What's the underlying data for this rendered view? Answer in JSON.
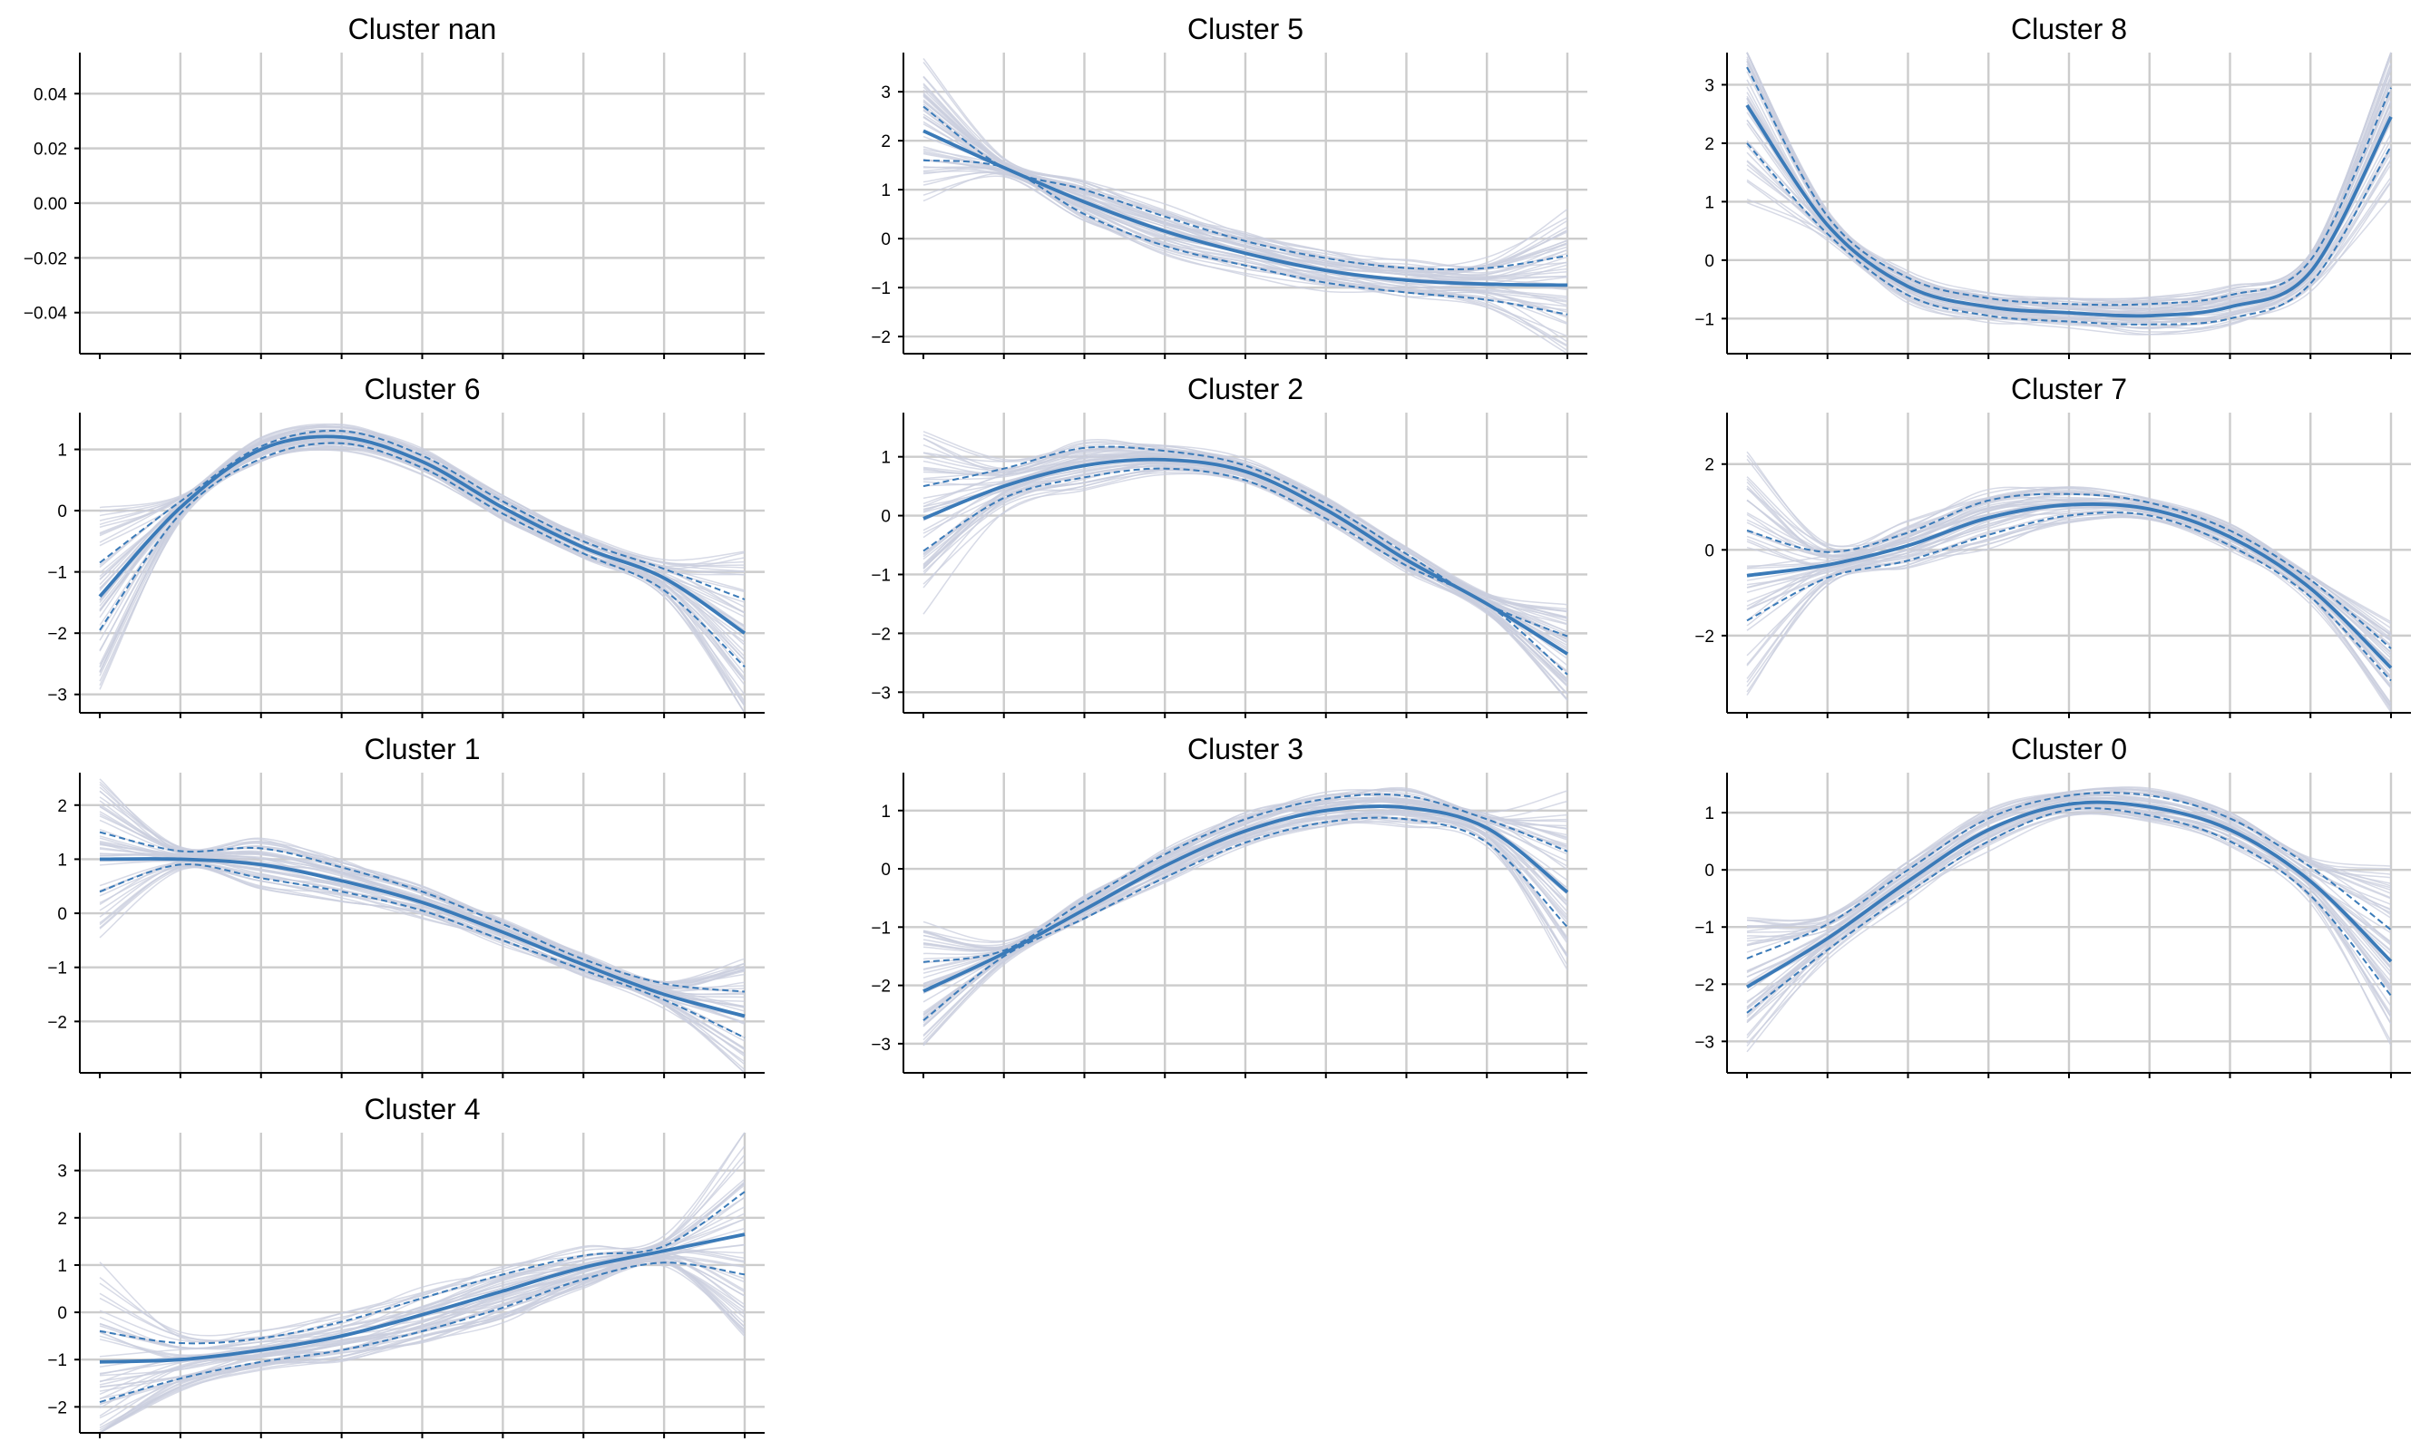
{
  "figure": {
    "accent_color": "#3a7ab8",
    "background_line_color": "#c9cdde",
    "grid_color": "#cccccc"
  },
  "chart_data": [
    {
      "type": "line",
      "title": "Cluster nan",
      "ylim": [
        -0.055,
        0.055
      ],
      "yticks": [
        0.04,
        0.02,
        0.0,
        -0.02,
        -0.04
      ],
      "ytick_labels": [
        "0.04",
        "0.02",
        "0.00",
        "−0.02",
        "−0.04"
      ],
      "x": [],
      "series": [],
      "xlabel": "",
      "ylabel": "",
      "grid": true
    },
    {
      "type": "line",
      "title": "Cluster 5",
      "ylim": [
        -2.35,
        3.8
      ],
      "yticks": [
        3,
        2,
        1,
        0,
        -1,
        -2
      ],
      "ytick_labels": [
        "3",
        "2",
        "1",
        "0",
        "−1",
        "−2"
      ],
      "x": [
        0,
        1,
        2,
        3,
        4,
        5,
        6,
        7,
        8
      ],
      "series": [
        {
          "name": "mean",
          "values": [
            2.2,
            1.45,
            0.75,
            0.15,
            -0.3,
            -0.65,
            -0.85,
            -0.93,
            -0.95
          ]
        },
        {
          "name": "upper",
          "values": [
            2.7,
            1.45,
            1.0,
            0.45,
            -0.05,
            -0.4,
            -0.6,
            -0.6,
            -0.35
          ]
        },
        {
          "name": "lower",
          "values": [
            1.6,
            1.45,
            0.5,
            -0.15,
            -0.55,
            -0.9,
            -1.1,
            -1.25,
            -1.55
          ]
        }
      ],
      "xlabel": "",
      "ylabel": "",
      "grid": true
    },
    {
      "type": "line",
      "title": "Cluster 8",
      "ylim": [
        -1.6,
        3.55
      ],
      "yticks": [
        3,
        2,
        1,
        0,
        -1
      ],
      "ytick_labels": [
        "3",
        "2",
        "1",
        "0",
        "−1"
      ],
      "x": [
        0,
        1,
        2,
        3,
        4,
        5,
        6,
        7,
        8
      ],
      "series": [
        {
          "name": "mean",
          "values": [
            2.65,
            0.6,
            -0.45,
            -0.8,
            -0.9,
            -0.95,
            -0.8,
            -0.2,
            2.45
          ]
        },
        {
          "name": "upper",
          "values": [
            3.3,
            0.75,
            -0.3,
            -0.65,
            -0.75,
            -0.75,
            -0.6,
            0.0,
            2.95
          ]
        },
        {
          "name": "lower",
          "values": [
            2.0,
            0.45,
            -0.6,
            -0.95,
            -1.05,
            -1.1,
            -1.0,
            -0.4,
            1.95
          ]
        }
      ],
      "xlabel": "",
      "ylabel": "",
      "grid": true
    },
    {
      "type": "line",
      "title": "Cluster 6",
      "ylim": [
        -3.3,
        1.6
      ],
      "yticks": [
        1,
        0,
        -1,
        -2,
        -3
      ],
      "ytick_labels": [
        "1",
        "0",
        "−1",
        "−2",
        "−3"
      ],
      "x": [
        0,
        1,
        2,
        3,
        4,
        5,
        6,
        7,
        8
      ],
      "series": [
        {
          "name": "mean",
          "values": [
            -1.4,
            0.05,
            1.0,
            1.2,
            0.8,
            0.05,
            -0.6,
            -1.1,
            -2.0
          ]
        },
        {
          "name": "upper",
          "values": [
            -0.85,
            0.15,
            1.05,
            1.3,
            0.9,
            0.15,
            -0.5,
            -0.95,
            -1.45
          ]
        },
        {
          "name": "lower",
          "values": [
            -1.95,
            -0.05,
            0.85,
            1.1,
            0.7,
            -0.05,
            -0.7,
            -1.3,
            -2.55
          ]
        }
      ],
      "xlabel": "",
      "ylabel": "",
      "grid": true
    },
    {
      "type": "line",
      "title": "Cluster 2",
      "ylim": [
        -3.35,
        1.75
      ],
      "yticks": [
        1,
        0,
        -1,
        -2,
        -3
      ],
      "ytick_labels": [
        "1",
        "0",
        "−1",
        "−2",
        "−3"
      ],
      "x": [
        0,
        1,
        2,
        3,
        4,
        5,
        6,
        7,
        8
      ],
      "series": [
        {
          "name": "mean",
          "values": [
            -0.05,
            0.5,
            0.85,
            0.95,
            0.75,
            0.1,
            -0.75,
            -1.5,
            -2.35
          ]
        },
        {
          "name": "upper",
          "values": [
            0.5,
            0.8,
            1.15,
            1.1,
            0.85,
            0.2,
            -0.65,
            -1.5,
            -2.05
          ]
        },
        {
          "name": "lower",
          "values": [
            -0.6,
            0.3,
            0.65,
            0.8,
            0.6,
            -0.05,
            -0.85,
            -1.5,
            -2.7
          ]
        }
      ],
      "xlabel": "",
      "ylabel": "",
      "grid": true
    },
    {
      "type": "line",
      "title": "Cluster 7",
      "ylim": [
        -3.8,
        3.2
      ],
      "yticks": [
        2,
        0,
        -2
      ],
      "ytick_labels": [
        "2",
        "0",
        "−2"
      ],
      "x": [
        0,
        1,
        2,
        3,
        4,
        5,
        6,
        7,
        8
      ],
      "series": [
        {
          "name": "mean",
          "values": [
            -0.6,
            -0.35,
            0.1,
            0.75,
            1.05,
            0.95,
            0.3,
            -0.9,
            -2.75
          ]
        },
        {
          "name": "upper",
          "values": [
            0.45,
            -0.05,
            0.4,
            1.15,
            1.3,
            1.1,
            0.45,
            -0.7,
            -2.3
          ]
        },
        {
          "name": "lower",
          "values": [
            -1.65,
            -0.65,
            -0.25,
            0.35,
            0.8,
            0.8,
            0.1,
            -1.1,
            -3.05
          ]
        }
      ],
      "xlabel": "",
      "ylabel": "",
      "grid": true
    },
    {
      "type": "line",
      "title": "Cluster 1",
      "ylim": [
        -2.95,
        2.6
      ],
      "yticks": [
        2,
        1,
        0,
        -1,
        -2
      ],
      "ytick_labels": [
        "2",
        "1",
        "0",
        "−1",
        "−2"
      ],
      "x": [
        0,
        1,
        2,
        3,
        4,
        5,
        6,
        7,
        8
      ],
      "series": [
        {
          "name": "mean",
          "values": [
            1.0,
            1.0,
            0.9,
            0.6,
            0.2,
            -0.35,
            -0.95,
            -1.5,
            -1.9
          ]
        },
        {
          "name": "upper",
          "values": [
            1.5,
            1.15,
            1.2,
            0.85,
            0.4,
            -0.2,
            -0.85,
            -1.3,
            -1.45
          ]
        },
        {
          "name": "lower",
          "values": [
            0.4,
            0.9,
            0.65,
            0.4,
            0.05,
            -0.5,
            -1.05,
            -1.6,
            -2.3
          ]
        }
      ],
      "xlabel": "",
      "ylabel": "",
      "grid": true
    },
    {
      "type": "line",
      "title": "Cluster 3",
      "ylim": [
        -3.5,
        1.65
      ],
      "yticks": [
        1,
        0,
        -1,
        -2,
        -3
      ],
      "ytick_labels": [
        "1",
        "0",
        "−1",
        "−2",
        "−3"
      ],
      "x": [
        0,
        1,
        2,
        3,
        4,
        5,
        6,
        7,
        8
      ],
      "series": [
        {
          "name": "mean",
          "values": [
            -2.1,
            -1.45,
            -0.7,
            0.05,
            0.65,
            1.0,
            1.05,
            0.7,
            -0.4
          ]
        },
        {
          "name": "upper",
          "values": [
            -1.6,
            -1.4,
            -0.55,
            0.25,
            0.85,
            1.2,
            1.25,
            0.85,
            0.3
          ]
        },
        {
          "name": "lower",
          "values": [
            -2.6,
            -1.5,
            -0.85,
            -0.15,
            0.45,
            0.8,
            0.85,
            0.45,
            -1.0
          ]
        }
      ],
      "xlabel": "",
      "ylabel": "",
      "grid": true
    },
    {
      "type": "line",
      "title": "Cluster 0",
      "ylim": [
        -3.55,
        1.7
      ],
      "yticks": [
        1,
        0,
        -1,
        -2,
        -3
      ],
      "ytick_labels": [
        "1",
        "0",
        "−1",
        "−2",
        "−3"
      ],
      "x": [
        0,
        1,
        2,
        3,
        4,
        5,
        6,
        7,
        8
      ],
      "series": [
        {
          "name": "mean",
          "values": [
            -2.05,
            -1.2,
            -0.2,
            0.7,
            1.15,
            1.1,
            0.7,
            -0.2,
            -1.6
          ]
        },
        {
          "name": "upper",
          "values": [
            -1.55,
            -0.95,
            0.0,
            0.9,
            1.3,
            1.3,
            0.9,
            0.05,
            -1.05
          ]
        },
        {
          "name": "lower",
          "values": [
            -2.5,
            -1.4,
            -0.4,
            0.5,
            1.05,
            0.95,
            0.5,
            -0.45,
            -2.2
          ]
        }
      ],
      "xlabel": "",
      "ylabel": "",
      "grid": true
    },
    {
      "type": "line",
      "title": "Cluster 4",
      "ylim": [
        -2.55,
        3.8
      ],
      "yticks": [
        3,
        2,
        1,
        0,
        -1,
        -2
      ],
      "ytick_labels": [
        "3",
        "2",
        "1",
        "0",
        "−1",
        "−2"
      ],
      "x": [
        0,
        1,
        2,
        3,
        4,
        5,
        6,
        7,
        8
      ],
      "series": [
        {
          "name": "mean",
          "values": [
            -1.05,
            -1.0,
            -0.8,
            -0.5,
            -0.05,
            0.45,
            0.95,
            1.3,
            1.65
          ]
        },
        {
          "name": "upper",
          "values": [
            -0.4,
            -0.65,
            -0.55,
            -0.2,
            0.3,
            0.8,
            1.2,
            1.4,
            2.55
          ]
        },
        {
          "name": "lower",
          "values": [
            -1.9,
            -1.4,
            -1.05,
            -0.8,
            -0.4,
            0.1,
            0.7,
            1.05,
            0.8
          ]
        }
      ],
      "xlabel": "",
      "ylabel": "",
      "grid": true
    }
  ]
}
